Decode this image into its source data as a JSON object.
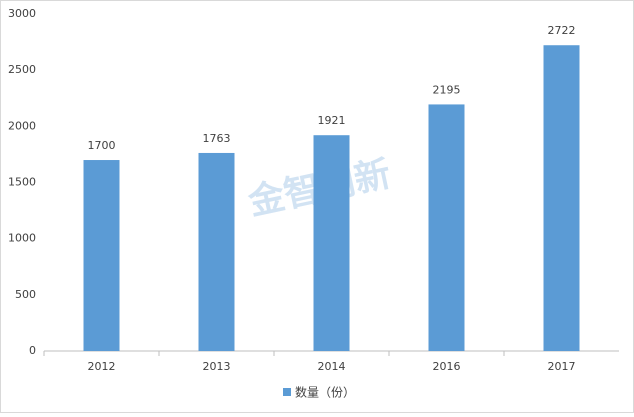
{
  "chart_data": {
    "type": "bar",
    "categories": [
      "2012",
      "2013",
      "2014",
      "2016",
      "2017"
    ],
    "series": [
      {
        "name": "数量（份）",
        "color": "#5b9bd5",
        "values": [
          1700,
          1763,
          1921,
          2195,
          2722
        ]
      }
    ],
    "ylim": [
      0,
      3000
    ],
    "yticks": [
      0,
      500,
      1000,
      1500,
      2000,
      2500,
      3000
    ],
    "grid": false,
    "legend": "bottom",
    "data_labels": true,
    "watermark": "金智创新"
  }
}
